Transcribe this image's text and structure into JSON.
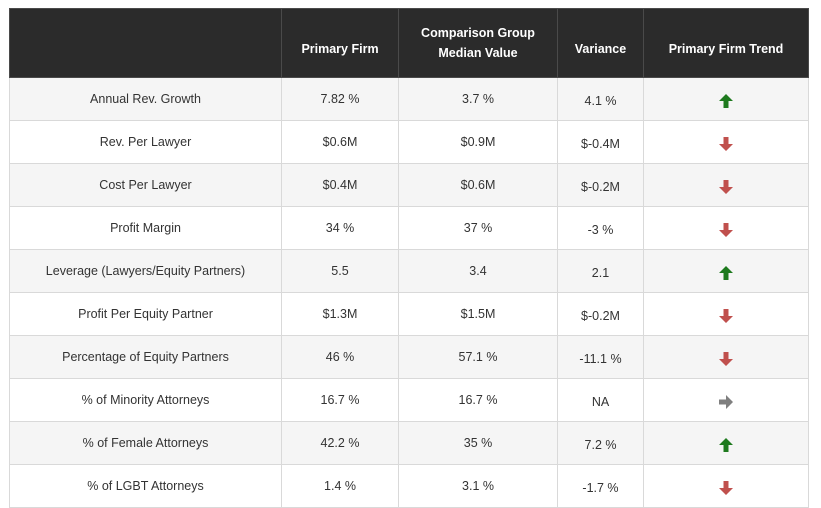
{
  "table": {
    "headers": [
      "",
      "Primary Firm",
      "Comparison Group\nMedian Value",
      "Variance",
      "Primary Firm Trend"
    ],
    "rows": [
      {
        "metric": "Annual Rev. Growth",
        "primary": "7.82 %",
        "median": "3.7 %",
        "variance": "4.1 %",
        "trend": "up-arrow-icon"
      },
      {
        "metric": "Rev. Per Lawyer",
        "primary": "$0.6M",
        "median": "$0.9M",
        "variance": "$-0.4M",
        "trend": "down-arrow-icon"
      },
      {
        "metric": "Cost Per Lawyer",
        "primary": "$0.4M",
        "median": "$0.6M",
        "variance": "$-0.2M",
        "trend": "down-arrow-icon"
      },
      {
        "metric": "Profit Margin",
        "primary": "34 %",
        "median": "37 %",
        "variance": "-3 %",
        "trend": "down-arrow-icon"
      },
      {
        "metric": "Leverage (Lawyers/Equity Partners)",
        "primary": "5.5",
        "median": "3.4",
        "variance": "2.1",
        "trend": "up-arrow-icon"
      },
      {
        "metric": "Profit Per Equity Partner",
        "primary": "$1.3M",
        "median": "$1.5M",
        "variance": "$-0.2M",
        "trend": "down-arrow-icon"
      },
      {
        "metric": "Percentage of Equity Partners",
        "primary": "46 %",
        "median": "57.1 %",
        "variance": "-11.1 %",
        "trend": "down-arrow-icon"
      },
      {
        "metric": "% of Minority Attorneys",
        "primary": "16.7 %",
        "median": "16.7 %",
        "variance": "NA",
        "trend": "right-arrow-icon"
      },
      {
        "metric": "% of Female Attorneys",
        "primary": "42.2 %",
        "median": "35 %",
        "variance": "7.2 %",
        "trend": "up-arrow-icon"
      },
      {
        "metric": "% of LGBT Attorneys",
        "primary": "1.4 %",
        "median": "3.1 %",
        "variance": "-1.7 %",
        "trend": "down-arrow-icon"
      }
    ]
  },
  "colors": {
    "header_bg": "#2b2b2b",
    "up": "#1e7a1e",
    "down": "#c0504d",
    "neutral": "#7f7f7f"
  }
}
